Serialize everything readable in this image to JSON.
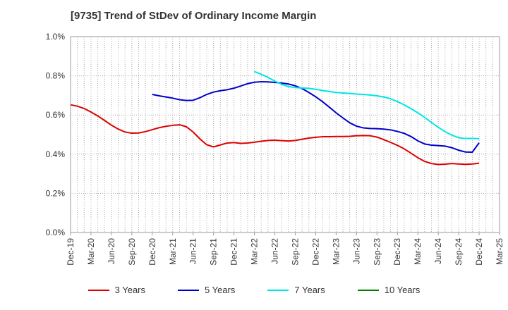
{
  "title": "[9735]  Trend of StDev of Ordinary Income Margin",
  "chart_data": {
    "type": "line",
    "title": "[9735]  Trend of StDev of Ordinary Income Margin",
    "xlabel": "",
    "ylabel": "",
    "x_ticks": [
      "Dec-19",
      "Mar-20",
      "Jun-20",
      "Sep-20",
      "Dec-20",
      "Mar-21",
      "Jun-21",
      "Sep-21",
      "Dec-21",
      "Mar-22",
      "Jun-22",
      "Sep-22",
      "Dec-22",
      "Mar-23",
      "Jun-23",
      "Sep-23",
      "Dec-23",
      "Mar-24",
      "Jun-24",
      "Sep-24",
      "Dec-24",
      "Mar-25"
    ],
    "y_ticks": [
      "0.0%",
      "0.2%",
      "0.4%",
      "0.6%",
      "0.8%",
      "1.0%"
    ],
    "ylim": [
      0,
      1.0
    ],
    "y_unit": "%",
    "grid": true,
    "legend_position": "bottom",
    "series": [
      {
        "name": "3 Years",
        "color": "#dd0000",
        "x": [
          "Dec-19",
          "Jan-20",
          "Feb-20",
          "Mar-20",
          "Apr-20",
          "May-20",
          "Jun-20",
          "Jul-20",
          "Aug-20",
          "Sep-20",
          "Oct-20",
          "Nov-20",
          "Dec-20",
          "Jan-21",
          "Feb-21",
          "Mar-21",
          "Apr-21",
          "May-21",
          "Jun-21",
          "Jul-21",
          "Aug-21",
          "Sep-21",
          "Oct-21",
          "Nov-21",
          "Dec-21",
          "Jan-22",
          "Feb-22",
          "Mar-22",
          "Apr-22",
          "May-22",
          "Jun-22",
          "Jul-22",
          "Aug-22",
          "Sep-22",
          "Oct-22",
          "Nov-22",
          "Dec-22",
          "Jan-23",
          "Feb-23",
          "Mar-23",
          "Apr-23",
          "May-23",
          "Jun-23",
          "Jul-23",
          "Aug-23",
          "Sep-23",
          "Oct-23",
          "Nov-23",
          "Dec-23",
          "Jan-24",
          "Feb-24",
          "Mar-24",
          "Apr-24",
          "May-24",
          "Jun-24",
          "Jul-24",
          "Aug-24",
          "Sep-24",
          "Oct-24",
          "Nov-24",
          "Dec-24"
        ],
        "values": [
          0.652,
          0.645,
          0.633,
          0.615,
          0.595,
          0.572,
          0.548,
          0.528,
          0.513,
          0.507,
          0.508,
          0.515,
          0.525,
          0.535,
          0.542,
          0.547,
          0.55,
          0.54,
          0.513,
          0.478,
          0.448,
          0.437,
          0.447,
          0.457,
          0.459,
          0.455,
          0.457,
          0.461,
          0.466,
          0.47,
          0.471,
          0.469,
          0.467,
          0.47,
          0.476,
          0.482,
          0.486,
          0.489,
          0.489,
          0.49,
          0.49,
          0.491,
          0.494,
          0.495,
          0.494,
          0.487,
          0.474,
          0.46,
          0.445,
          0.427,
          0.405,
          0.382,
          0.363,
          0.352,
          0.347,
          0.349,
          0.352,
          0.35,
          0.348,
          0.35,
          0.354
        ]
      },
      {
        "name": "5 Years",
        "color": "#0000cc",
        "x": [
          "Dec-20",
          "Jan-21",
          "Feb-21",
          "Mar-21",
          "Apr-21",
          "May-21",
          "Jun-21",
          "Jul-21",
          "Aug-21",
          "Sep-21",
          "Oct-21",
          "Nov-21",
          "Dec-21",
          "Jan-22",
          "Feb-22",
          "Mar-22",
          "Apr-22",
          "May-22",
          "Jun-22",
          "Jul-22",
          "Aug-22",
          "Sep-22",
          "Oct-22",
          "Nov-22",
          "Dec-22",
          "Jan-23",
          "Feb-23",
          "Mar-23",
          "Apr-23",
          "May-23",
          "Jun-23",
          "Jul-23",
          "Aug-23",
          "Sep-23",
          "Oct-23",
          "Nov-23",
          "Dec-23",
          "Jan-24",
          "Feb-24",
          "Mar-24",
          "Apr-24",
          "May-24",
          "Jun-24",
          "Jul-24",
          "Aug-24",
          "Sep-24",
          "Oct-24",
          "Nov-24",
          "Dec-24"
        ],
        "values": [
          0.705,
          0.698,
          0.692,
          0.686,
          0.678,
          0.674,
          0.675,
          0.688,
          0.705,
          0.717,
          0.724,
          0.729,
          0.737,
          0.748,
          0.76,
          0.767,
          0.77,
          0.769,
          0.766,
          0.763,
          0.758,
          0.749,
          0.735,
          0.715,
          0.693,
          0.668,
          0.64,
          0.611,
          0.585,
          0.56,
          0.543,
          0.534,
          0.531,
          0.53,
          0.528,
          0.524,
          0.516,
          0.506,
          0.49,
          0.468,
          0.452,
          0.446,
          0.444,
          0.441,
          0.433,
          0.42,
          0.411,
          0.41,
          0.458
        ]
      },
      {
        "name": "7 Years",
        "color": "#00e5e5",
        "x": [
          "Mar-22",
          "Apr-22",
          "May-22",
          "Jun-22",
          "Jul-22",
          "Aug-22",
          "Sep-22",
          "Oct-22",
          "Nov-22",
          "Dec-22",
          "Jan-23",
          "Feb-23",
          "Mar-23",
          "Apr-23",
          "May-23",
          "Jun-23",
          "Jul-23",
          "Aug-23",
          "Sep-23",
          "Oct-23",
          "Nov-23",
          "Dec-23",
          "Jan-24",
          "Feb-24",
          "Mar-24",
          "Apr-24",
          "May-24",
          "Jun-24",
          "Jul-24",
          "Aug-24",
          "Sep-24",
          "Oct-24",
          "Nov-24",
          "Dec-24"
        ],
        "values": [
          0.822,
          0.808,
          0.792,
          0.773,
          0.756,
          0.745,
          0.74,
          0.738,
          0.736,
          0.731,
          0.725,
          0.72,
          0.715,
          0.712,
          0.71,
          0.707,
          0.705,
          0.702,
          0.698,
          0.692,
          0.683,
          0.668,
          0.652,
          0.632,
          0.611,
          0.588,
          0.562,
          0.537,
          0.515,
          0.497,
          0.484,
          0.48,
          0.48,
          0.479
        ]
      },
      {
        "name": "10 Years",
        "color": "#008000",
        "x": [],
        "values": []
      }
    ]
  }
}
